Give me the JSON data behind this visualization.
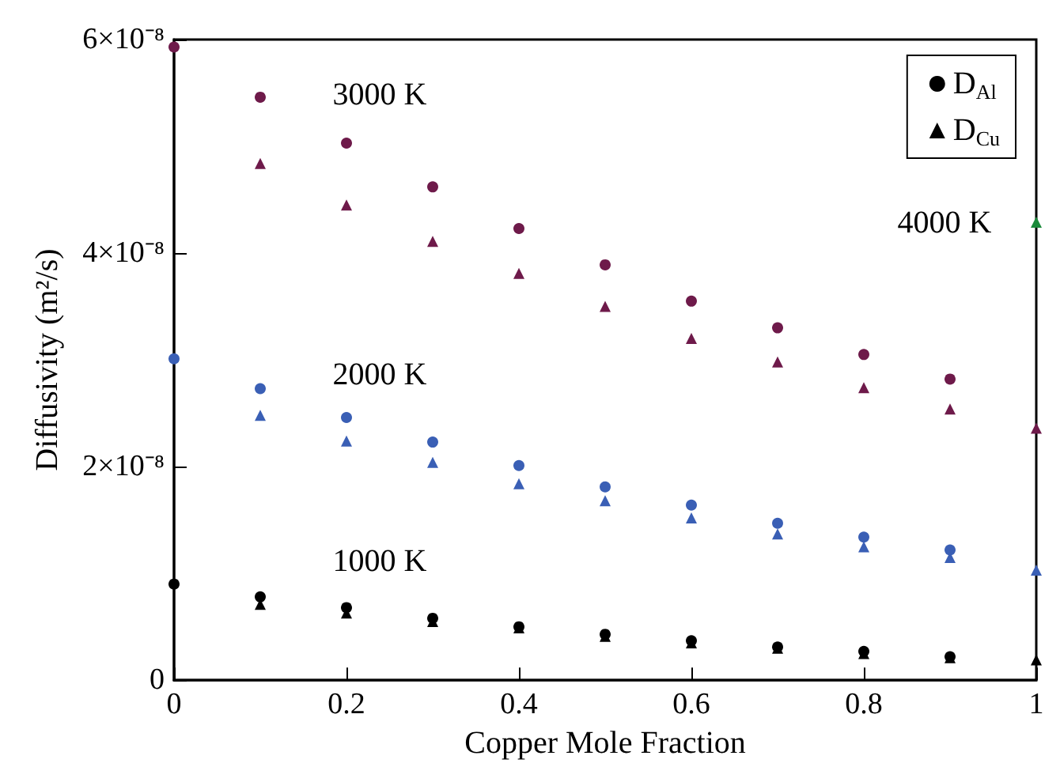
{
  "chart_data": {
    "type": "scatter",
    "xlabel": "Copper Mole Fraction",
    "ylabel": "Diffusivity (m²/s)",
    "xlim": [
      0,
      1
    ],
    "xticks": [
      0,
      0.2,
      0.4,
      0.6,
      0.8,
      1
    ],
    "ylim": [
      0,
      6e-08
    ],
    "yticks": [
      {
        "value": 0,
        "label": "0"
      },
      {
        "value": 2e-08,
        "label": "2×10⁻⁸"
      },
      {
        "value": 4e-08,
        "label": "4×10⁻⁸"
      },
      {
        "value": 6e-08,
        "label": "6×10⁻⁸"
      }
    ],
    "grid": false,
    "legend": "top right",
    "series": [
      {
        "name": "D$_{Al}$",
        "color": "#000000",
        "marker": "circle",
        "x": [
          0,
          0.1,
          0.2,
          0.3,
          0.4,
          0.5,
          0.6,
          0.7,
          0.8,
          0.9
        ],
        "values": [
          9e-09,
          7.8e-09,
          6.8e-09,
          5.8e-09,
          5e-09,
          4.3e-09,
          3.7e-09,
          3.1e-09,
          2.7e-09,
          2.2e-09
        ]
      },
      {
        "name": "D$_{Cu}$",
        "color": "#000000",
        "marker": "triangle",
        "x": [
          0.1,
          0.2,
          0.3,
          0.4,
          0.5,
          0.6,
          0.7,
          0.8,
          0.9,
          1
        ],
        "values": [
          7.1e-09,
          6.3e-09,
          5.5e-09,
          4.9e-09,
          4.1e-09,
          3.5e-09,
          3e-09,
          2.5e-09,
          2.1e-09,
          1.9e-09
        ]
      },
      {
        "color": "#3a5fb5",
        "marker": "circle",
        "x": [
          0,
          0.1,
          0.2,
          0.3,
          0.4,
          0.5,
          0.6,
          0.7,
          0.8,
          0.9
        ],
        "values": [
          3.01e-08,
          2.73e-08,
          2.46e-08,
          2.23e-08,
          2.01e-08,
          1.81e-08,
          1.64e-08,
          1.47e-08,
          1.34e-08,
          1.22e-08
        ]
      },
      {
        "color": "#3a5fb5",
        "marker": "triangle",
        "x": [
          0.1,
          0.2,
          0.3,
          0.4,
          0.5,
          0.6,
          0.7,
          0.8,
          0.9,
          1
        ],
        "values": [
          2.48e-08,
          2.24e-08,
          2.04e-08,
          1.84e-08,
          1.68e-08,
          1.52e-08,
          1.37e-08,
          1.25e-08,
          1.15e-08,
          1.03e-08
        ]
      },
      {
        "color": "#6e1a4a",
        "marker": "circle",
        "x": [
          0,
          0.1,
          0.2,
          0.3,
          0.4,
          0.5,
          0.6,
          0.7,
          0.8,
          0.9
        ],
        "values": [
          5.93e-08,
          5.46e-08,
          5.03e-08,
          4.62e-08,
          4.23e-08,
          3.89e-08,
          3.55e-08,
          3.3e-08,
          3.05e-08,
          2.82e-08
        ]
      },
      {
        "color": "#6e1a4a",
        "marker": "triangle",
        "x": [
          0.1,
          0.2,
          0.3,
          0.4,
          0.5,
          0.6,
          0.7,
          0.8,
          0.9,
          1
        ],
        "values": [
          4.84e-08,
          4.45e-08,
          4.11e-08,
          3.81e-08,
          3.5e-08,
          3.2e-08,
          2.98e-08,
          2.74e-08,
          2.54e-08,
          2.36e-08
        ]
      },
      {
        "color": "#1a8a3a",
        "marker": "triangle",
        "x": [
          1
        ],
        "values": [
          4.29e-08
        ]
      }
    ],
    "annotations": [
      "1000 K",
      "2000 K",
      "3000 K",
      "4000 K"
    ]
  }
}
